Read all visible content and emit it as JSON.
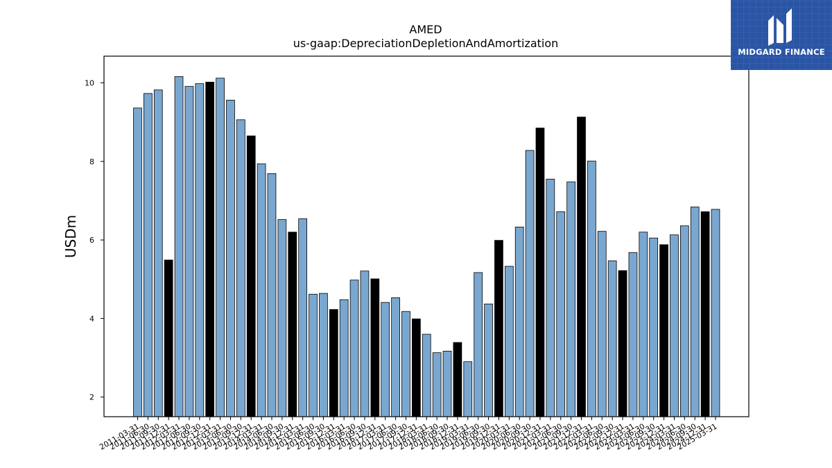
{
  "chart_data": {
    "type": "bar",
    "title": "AMED",
    "subtitle": "us-gaap:DepreciationDepletionAndAmortization",
    "xlabel": "",
    "ylabel": "USDm",
    "ylim": [
      1.5,
      10.68
    ],
    "yticks": [
      2,
      4,
      6,
      8,
      10
    ],
    "grid": false,
    "colors": {
      "quarter": "#7aa7cf",
      "fiscal_year_end": "#000000",
      "edge": "#000000"
    },
    "categories": [
      "2011-03-31",
      "2011-06-30",
      "2011-09-30",
      "2011-12-31",
      "2012-03-31",
      "2012-06-30",
      "2012-09-30",
      "2012-12-31",
      "2013-03-31",
      "2013-06-30",
      "2013-09-30",
      "2013-12-31",
      "2014-03-31",
      "2014-06-30",
      "2014-09-30",
      "2014-12-31",
      "2015-03-31",
      "2015-06-30",
      "2015-09-30",
      "2015-12-31",
      "2016-03-31",
      "2016-06-30",
      "2016-09-30",
      "2016-12-31",
      "2017-03-31",
      "2017-06-30",
      "2017-09-30",
      "2017-12-31",
      "2018-03-31",
      "2018-06-30",
      "2018-09-30",
      "2018-12-31",
      "2019-03-31",
      "2019-06-30",
      "2019-09-30",
      "2019-12-31",
      "2020-03-31",
      "2020-06-30",
      "2020-09-30",
      "2020-12-31",
      "2021-03-31",
      "2021-06-30",
      "2021-09-30",
      "2021-12-31",
      "2022-03-31",
      "2022-06-30",
      "2022-09-30",
      "2022-12-31",
      "2023-03-31",
      "2023-06-30",
      "2023-09-30",
      "2023-12-31",
      "2024-03-31",
      "2024-06-30",
      "2024-09-30",
      "2024-12-31",
      "2025-03-31"
    ],
    "values": [
      9.36,
      9.73,
      9.82,
      5.49,
      10.16,
      9.91,
      9.98,
      10.02,
      10.12,
      9.56,
      9.06,
      8.65,
      7.94,
      7.69,
      6.52,
      6.2,
      6.54,
      4.62,
      4.64,
      4.23,
      4.48,
      4.98,
      5.21,
      5.01,
      4.41,
      4.53,
      4.18,
      3.99,
      3.6,
      3.13,
      3.17,
      3.39,
      2.9,
      5.17,
      4.37,
      5.99,
      5.33,
      6.33,
      8.28,
      8.85,
      7.55,
      6.72,
      7.48,
      9.13,
      8.01,
      6.22,
      5.47,
      5.22,
      5.68,
      6.2,
      6.05,
      5.88,
      6.13,
      6.36,
      6.84,
      6.72,
      6.78
    ],
    "highlight": [
      false,
      false,
      false,
      true,
      false,
      false,
      false,
      true,
      false,
      false,
      false,
      true,
      false,
      false,
      false,
      true,
      false,
      false,
      false,
      true,
      false,
      false,
      false,
      true,
      false,
      false,
      false,
      true,
      false,
      false,
      false,
      true,
      false,
      false,
      false,
      true,
      false,
      false,
      false,
      true,
      false,
      false,
      false,
      true,
      false,
      false,
      false,
      true,
      false,
      false,
      false,
      true,
      false,
      false,
      false,
      true,
      false
    ]
  },
  "logo": {
    "text": "MIDGARD FINANCE",
    "icon": "midgard-logo-icon"
  }
}
